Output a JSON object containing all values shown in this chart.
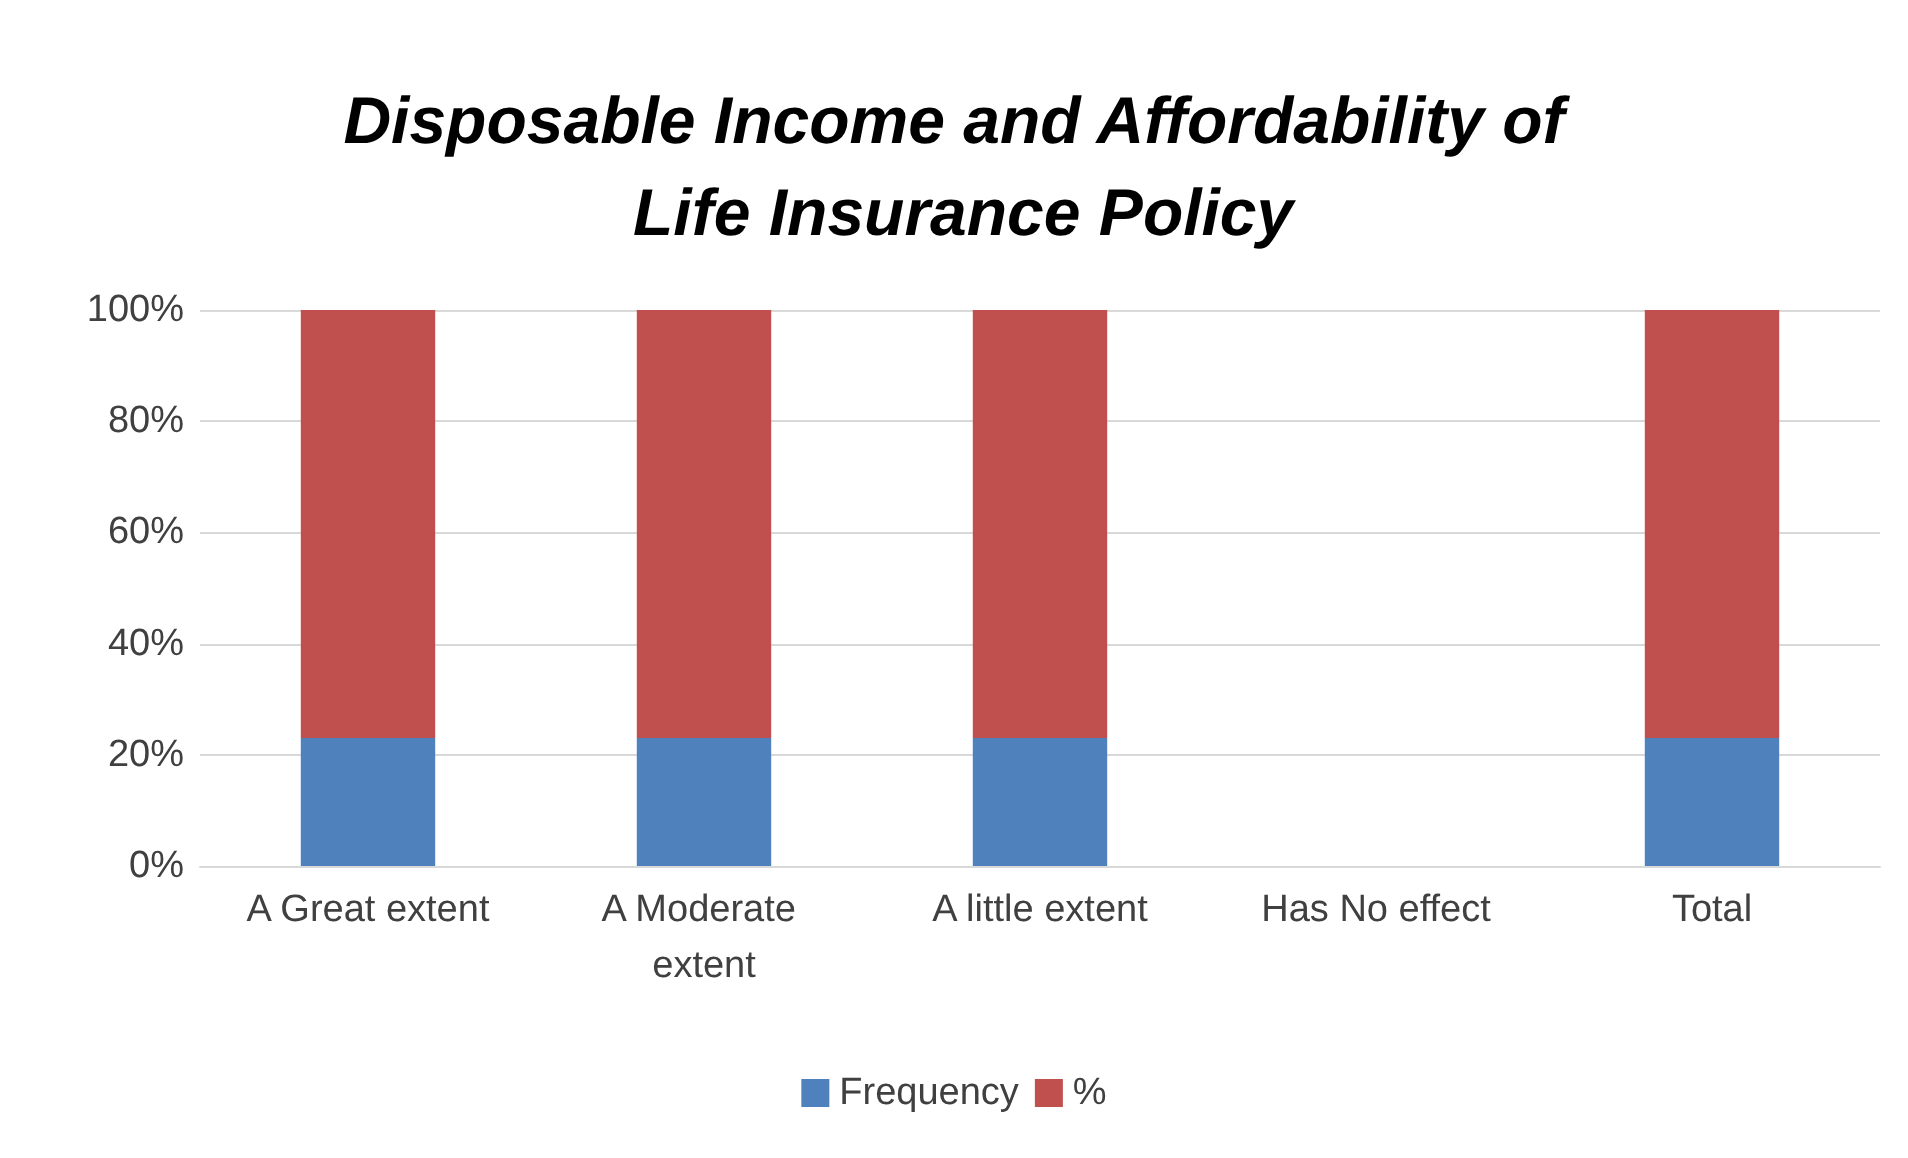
{
  "chart_data": {
    "type": "bar",
    "title": "Disposable Income and Affordability of Life Insurance Policy",
    "categories": [
      "A Great extent",
      "A Moderate extent",
      "A little extent",
      "Has No effect",
      "Total"
    ],
    "series": [
      {
        "name": "Frequency",
        "color": "#4f81bd",
        "values": [
          23,
          23,
          23,
          null,
          23
        ]
      },
      {
        "name": "%",
        "color": "#c0504d",
        "values": [
          77,
          77,
          77,
          null,
          77
        ]
      }
    ],
    "stacked": true,
    "ylim": [
      0,
      100
    ],
    "yticks": [
      {
        "value": 0,
        "label": "0%"
      },
      {
        "value": 20,
        "label": "20%"
      },
      {
        "value": 40,
        "label": "40%"
      },
      {
        "value": 60,
        "label": "60%"
      },
      {
        "value": 80,
        "label": "80%"
      },
      {
        "value": 100,
        "label": "100%"
      }
    ],
    "grid": "y",
    "legend": "bottom"
  }
}
